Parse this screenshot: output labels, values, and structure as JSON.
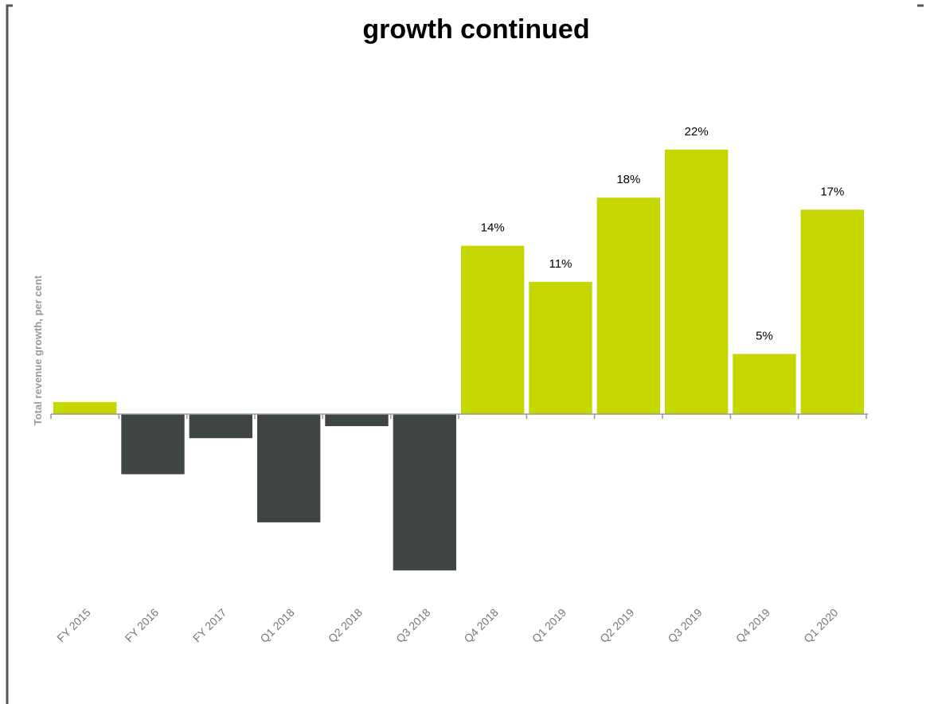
{
  "chart_data": {
    "type": "bar",
    "title": "growth continued",
    "y_label": "Total revenue growth, per cent",
    "categories": [
      "FY 2015",
      "FY 2016",
      "FY 2017",
      "Q1 2018",
      "Q2 2018",
      "Q3 2018",
      "Q4 2018",
      "Q1 2019",
      "Q2 2019",
      "Q3 2019",
      "Q4 2019",
      "Q1 2020"
    ],
    "values": [
      1,
      -5,
      -2,
      -9,
      -1,
      -13,
      14,
      11,
      18,
      22,
      5,
      17
    ],
    "value_labels": [
      null,
      null,
      null,
      null,
      null,
      null,
      "14%",
      "11%",
      "18%",
      "22%",
      "5%",
      "17%"
    ],
    "positive_color": "#c5d600",
    "negative_color": "#3f4444",
    "ylim": [
      -15,
      25
    ]
  }
}
